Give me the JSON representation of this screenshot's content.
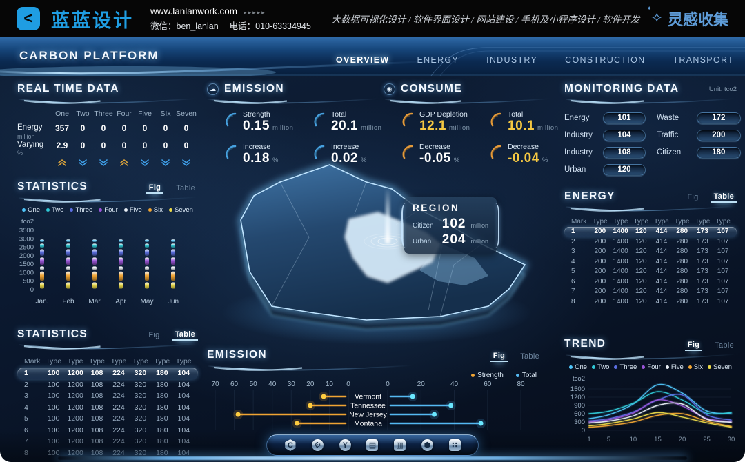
{
  "banner": {
    "logo_text": "蓝蓝设计",
    "website": "www.lanlanwork.com",
    "website_arrows": "▸▸▸▸▸",
    "wechat": "微信：ben_lanlan",
    "phone": "电话：010-63334945",
    "services": "大数据可视化设计 / 软件界面设计 / 网站建设 / 手机及小程序设计 / 软件开发",
    "collect_label": "灵感收集"
  },
  "header": {
    "title": "CARBON PLATFORM",
    "nav": [
      {
        "label": "OVERVIEW",
        "active": true
      },
      {
        "label": "ENERGY",
        "active": false
      },
      {
        "label": "INDUSTRY",
        "active": false
      },
      {
        "label": "CONSTRUCTION",
        "active": false
      },
      {
        "label": "TRANSPORT",
        "active": false
      }
    ]
  },
  "realtime": {
    "title": "REAL TIME DATA",
    "columns": [
      "One",
      "Two",
      "Three",
      "Four",
      "Five",
      "SIx",
      "Seven"
    ],
    "rows": [
      {
        "label": "Energy",
        "unit": "million",
        "values": [
          "357",
          "0",
          "0",
          "0",
          "0",
          "0",
          "0"
        ]
      },
      {
        "label": "Varying",
        "unit": "%",
        "values": [
          "2.9",
          "0",
          "0",
          "0",
          "0",
          "0",
          "0"
        ]
      }
    ],
    "trends": [
      "up",
      "down",
      "down",
      "up",
      "down",
      "down",
      "down"
    ],
    "trend_colors": {
      "up": "#d9a33c",
      "down": "#3f9fe8"
    }
  },
  "statistics_fig": {
    "title": "STATISTICS",
    "toggle": {
      "fig_label": "Fig",
      "table_label": "Table",
      "active": "fig"
    }
  },
  "statistics_table": {
    "title": "STATISTICS",
    "toggle": {
      "fig_label": "Fig",
      "table_label": "Table",
      "active": "table"
    },
    "columns": [
      "Mark",
      "Type",
      "Type",
      "Type",
      "Type",
      "Type",
      "Type",
      "Type"
    ],
    "highlight_row": 0,
    "rows": [
      [
        "1",
        "100",
        "1200",
        "108",
        "224",
        "320",
        "180",
        "104"
      ],
      [
        "2",
        "100",
        "1200",
        "108",
        "224",
        "320",
        "180",
        "104"
      ],
      [
        "3",
        "100",
        "1200",
        "108",
        "224",
        "320",
        "180",
        "104"
      ],
      [
        "4",
        "100",
        "1200",
        "108",
        "224",
        "320",
        "180",
        "104"
      ],
      [
        "5",
        "100",
        "1200",
        "108",
        "224",
        "320",
        "180",
        "104"
      ],
      [
        "6",
        "100",
        "1200",
        "108",
        "224",
        "320",
        "180",
        "104"
      ],
      [
        "7",
        "100",
        "1200",
        "108",
        "224",
        "320",
        "180",
        "104"
      ],
      [
        "8",
        "100",
        "1200",
        "108",
        "224",
        "320",
        "180",
        "104"
      ]
    ]
  },
  "emission_stats": {
    "title": "EMISSION",
    "icon": "cloud-icon",
    "accent": "#4aa8e8",
    "items": [
      {
        "label": "Strength",
        "value": "0.15",
        "unit": "million",
        "value_color": "#ffffff"
      },
      {
        "label": "Total",
        "value": "20.1",
        "unit": "million",
        "value_color": "#ffffff"
      },
      {
        "label": "Increase",
        "value": "0.18",
        "unit": "%",
        "value_color": "#ffffff"
      },
      {
        "label": "Increase",
        "value": "0.02",
        "unit": "%",
        "value_color": "#ffffff"
      }
    ]
  },
  "consume_stats": {
    "title": "CONSUME",
    "icon": "target-icon",
    "accent": "#f0a13a",
    "items": [
      {
        "label": "GDP Depletion",
        "value": "12.1",
        "unit": "million",
        "value_color": "#f5c842"
      },
      {
        "label": "Total",
        "value": "10.1",
        "unit": "million",
        "value_color": "#f5c842"
      },
      {
        "label": "Decrease",
        "value": "-0.05",
        "unit": "%",
        "value_color": "#ffffff"
      },
      {
        "label": "Decrease",
        "value": "-0.04",
        "unit": "%",
        "value_color": "#f5c842"
      }
    ]
  },
  "monitoring": {
    "title": "MONITORING DATA",
    "unit": "Unit: tco2",
    "left": [
      {
        "label": "Energy",
        "value": "101"
      },
      {
        "label": "Industry",
        "value": "104"
      },
      {
        "label": "Industry",
        "value": "108"
      },
      {
        "label": "Urban",
        "value": "120"
      }
    ],
    "right": [
      {
        "label": "Waste",
        "value": "172"
      },
      {
        "label": "Traffic",
        "value": "200"
      },
      {
        "label": "Citizen",
        "value": "180"
      }
    ]
  },
  "energy_table": {
    "title": "ENERGY",
    "toggle": {
      "fig_label": "Fig",
      "table_label": "Table",
      "active": "table"
    },
    "columns": [
      "Mark",
      "Type",
      "Type",
      "Type",
      "Type",
      "Type",
      "Type",
      "Type"
    ],
    "highlight_row": 0,
    "rows": [
      [
        "1",
        "200",
        "1400",
        "120",
        "414",
        "280",
        "173",
        "107"
      ],
      [
        "2",
        "200",
        "1400",
        "120",
        "414",
        "280",
        "173",
        "107"
      ],
      [
        "3",
        "200",
        "1400",
        "120",
        "414",
        "280",
        "173",
        "107"
      ],
      [
        "4",
        "200",
        "1400",
        "120",
        "414",
        "280",
        "173",
        "107"
      ],
      [
        "5",
        "200",
        "1400",
        "120",
        "414",
        "280",
        "173",
        "107"
      ],
      [
        "6",
        "200",
        "1400",
        "120",
        "414",
        "280",
        "173",
        "107"
      ],
      [
        "7",
        "200",
        "1400",
        "120",
        "414",
        "280",
        "173",
        "107"
      ],
      [
        "8",
        "200",
        "1400",
        "120",
        "414",
        "280",
        "173",
        "107"
      ]
    ]
  },
  "trend": {
    "title": "TREND",
    "toggle": {
      "fig_label": "Fig",
      "table_label": "Table",
      "active": "fig"
    }
  },
  "emission_chart_panel": {
    "title": "EMISSION",
    "toggle": {
      "fig_label": "Fig",
      "table_label": "Table",
      "active": "fig"
    }
  },
  "region_popup": {
    "title": "REGION",
    "rows": [
      {
        "label": "Citizen",
        "value": "102",
        "unit": "million"
      },
      {
        "label": "Urban",
        "value": "204",
        "unit": "million"
      }
    ]
  },
  "dock": {
    "icons": [
      "home",
      "gear",
      "media",
      "kiosk",
      "board",
      "nut",
      "apps"
    ]
  },
  "series_colors": {
    "One": "#4fc3f7",
    "Two": "#30c9d6",
    "Three": "#5b6ee0",
    "Four": "#9a55d8",
    "Five": "#e8eef5",
    "Six": "#f0a433",
    "Seven": "#ead94a"
  },
  "chart_data": [
    {
      "id": "statistics-bars",
      "type": "bar",
      "stacked": true,
      "title": "STATISTICS",
      "ylabel": "tco2",
      "ylim": [
        0,
        3500
      ],
      "yticks": [
        0,
        500,
        1000,
        1500,
        2000,
        2500,
        3000,
        3500
      ],
      "categories": [
        "Jan.",
        "Feb",
        "Mar",
        "Apr",
        "May",
        "Jun"
      ],
      "legend": [
        "One",
        "Two",
        "Three",
        "Four",
        "Five",
        "Six",
        "Seven"
      ],
      "legend_position": "top",
      "stack_order": "bottom-up",
      "series": [
        {
          "name": "Seven",
          "color": "#ead94a",
          "values": [
            470,
            470,
            470,
            470,
            470,
            470
          ]
        },
        {
          "name": "Six",
          "color": "#f0a433",
          "values": [
            640,
            640,
            640,
            640,
            640,
            640
          ]
        },
        {
          "name": "Five",
          "color": "#e8eef5",
          "values": [
            300,
            300,
            300,
            300,
            300,
            300
          ]
        },
        {
          "name": "Four",
          "color": "#9a55d8",
          "values": [
            530,
            530,
            530,
            530,
            530,
            530
          ]
        },
        {
          "name": "Three",
          "color": "#5b6ee0",
          "values": [
            480,
            480,
            480,
            480,
            480,
            480
          ]
        },
        {
          "name": "Two",
          "color": "#30c9d6",
          "values": [
            330,
            330,
            330,
            330,
            330,
            330
          ]
        },
        {
          "name": "One",
          "color": "#4fc3f7",
          "values": [
            250,
            250,
            250,
            250,
            250,
            250
          ]
        }
      ]
    },
    {
      "id": "emission-tornado",
      "type": "bar",
      "orientation": "horizontal-diverging",
      "title": "EMISSION",
      "categories": [
        "Vermont",
        "Tennessee",
        "New Jersey",
        "Montana"
      ],
      "left_axis": {
        "name": "Strength",
        "ticks": [
          70,
          60,
          50,
          40,
          30,
          20,
          10,
          0
        ],
        "max": 70
      },
      "right_axis": {
        "name": "Total",
        "ticks": [
          0,
          20,
          40,
          60,
          80
        ],
        "max": 80
      },
      "legend": [
        "Strength",
        "Total"
      ],
      "legend_position": "top-right",
      "grid": true,
      "series": [
        {
          "name": "Strength",
          "side": "left",
          "color": "#f0a433",
          "values": [
            13,
            20,
            58,
            27
          ]
        },
        {
          "name": "Total",
          "side": "right",
          "color": "#55b9f2",
          "values": [
            15,
            38,
            28,
            56
          ]
        }
      ]
    },
    {
      "id": "trend-lines",
      "type": "line",
      "title": "TREND",
      "ylabel": "tco2",
      "ylim": [
        0,
        1800
      ],
      "yticks": [
        0,
        300,
        600,
        900,
        1200,
        1500
      ],
      "x": [
        1,
        5,
        10,
        15,
        20,
        25,
        30
      ],
      "xticks": [
        1,
        5,
        10,
        15,
        20,
        25,
        30
      ],
      "legend": [
        "One",
        "Two",
        "Three",
        "Four",
        "Five",
        "Six",
        "Seven"
      ],
      "legend_position": "top",
      "series": [
        {
          "name": "One",
          "color": "#4fc3f7",
          "values": [
            420,
            560,
            950,
            1650,
            1350,
            700,
            600
          ]
        },
        {
          "name": "Two",
          "color": "#30c9d6",
          "values": [
            600,
            690,
            980,
            1400,
            1100,
            620,
            640
          ]
        },
        {
          "name": "Three",
          "color": "#5b6ee0",
          "values": [
            340,
            420,
            660,
            1100,
            1280,
            560,
            370
          ]
        },
        {
          "name": "Four",
          "color": "#9a55d8",
          "values": [
            300,
            380,
            620,
            1100,
            880,
            430,
            320
          ]
        },
        {
          "name": "Five",
          "color": "#e8eef5",
          "values": [
            260,
            330,
            520,
            900,
            950,
            400,
            290
          ]
        },
        {
          "name": "Six",
          "color": "#f0a433",
          "values": [
            110,
            170,
            300,
            540,
            600,
            330,
            140
          ]
        },
        {
          "name": "Seven",
          "color": "#ead94a",
          "values": [
            160,
            240,
            410,
            640,
            480,
            270,
            110
          ]
        }
      ]
    }
  ]
}
